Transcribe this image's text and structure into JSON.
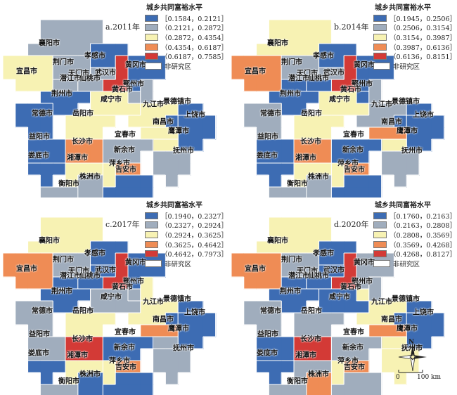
{
  "legend_title": "城乡共同富裕水平",
  "no_study": "非研究区",
  "colors": [
    "#3d6cb3",
    "#a0adbd",
    "#f7f2b3",
    "#ef8c55",
    "#d33a36"
  ],
  "panels": [
    {
      "title": "a.2011年",
      "ranges": [
        "［0.1584，0.2121］",
        "（0.2121，0.2872］",
        "（0.2872，0.4354］",
        "（0.4354，0.6187］",
        "（0.6187，0.7585］"
      ],
      "classes": {
        "xiangyang": 1,
        "jingmen": 1,
        "xiaogan": 0,
        "wuhan": 4,
        "huanggang": 0,
        "yichang": 2,
        "tianmen": 1,
        "qianjiang": 1,
        "xiantao": 1,
        "ezhou": 1,
        "jingzhou": 0,
        "huangshi": 1,
        "xianning": 2,
        "changde": 0,
        "yueyang": 2,
        "jiujiang": 2,
        "jingdezhen": 0,
        "shangrao": 0,
        "nanchang": 2,
        "yingtan": 2,
        "yiyang": 0,
        "changsha": 3,
        "yichun": 1,
        "xinyu": 3,
        "fuzhou": 1,
        "loudi": 0,
        "xiangtan": 2,
        "pingxiang": 2,
        "zhuzhou": 1,
        "hengyang": 1,
        "jian": 0
      }
    },
    {
      "title": "b.2014年",
      "ranges": [
        "［0.1945，0.2506］",
        "（0.2506，0.3154］",
        "（0.3154，0.3987］",
        "（0.3987，0.6136］",
        "（0.6136，0.8151］"
      ],
      "classes": {
        "xiangyang": 2,
        "jingmen": 1,
        "xiaogan": 0,
        "wuhan": 4,
        "huanggang": 0,
        "yichang": 3,
        "tianmen": 1,
        "qianjiang": 0,
        "xiantao": 0,
        "ezhou": 0,
        "jingzhou": 0,
        "huangshi": 1,
        "xianning": 2,
        "changde": 1,
        "yueyang": 2,
        "jiujiang": 1,
        "jingdezhen": 0,
        "shangrao": 0,
        "nanchang": 3,
        "yingtan": 2,
        "yiyang": 0,
        "changsha": 3,
        "yichun": 0,
        "xinyu": 3,
        "fuzhou": 1,
        "loudi": 0,
        "xiangtan": 2,
        "pingxiang": 2,
        "zhuzhou": 1,
        "hengyang": 1,
        "jian": 0
      }
    },
    {
      "title": "c.2017年",
      "ranges": [
        "［0.1940，0.2327］",
        "（0.2327，0.2924］",
        "（0.2924，0.3625］",
        "（0.3625，0.4642］",
        "（0.4642，0.7973］"
      ],
      "classes": {
        "xiangyang": 2,
        "jingmen": 1,
        "xiaogan": 0,
        "wuhan": 4,
        "huanggang": 0,
        "yichang": 3,
        "tianmen": 0,
        "qianjiang": 0,
        "xiantao": 0,
        "ezhou": 1,
        "jingzhou": 0,
        "huangshi": 2,
        "xianning": 1,
        "changde": 1,
        "yueyang": 2,
        "jiujiang": 2,
        "jingdezhen": 0,
        "shangrao": 0,
        "nanchang": 3,
        "yingtan": 1,
        "yiyang": 1,
        "changsha": 4,
        "yichun": 0,
        "xinyu": 3,
        "fuzhou": 1,
        "loudi": 0,
        "xiangtan": 2,
        "pingxiang": 2,
        "zhuzhou": 0,
        "hengyang": 1,
        "jian": 0
      }
    },
    {
      "title": "d.2020年",
      "ranges": [
        "［0.1760，0.2163］",
        "（0.2163，0.2808］",
        "（0.2808，0.3569］",
        "（0.3569，0.4268］",
        "（0.4268，0.8127］"
      ],
      "classes": {
        "xiangyang": 2,
        "jingmen": 1,
        "xiaogan": 0,
        "wuhan": 4,
        "huanggang": 1,
        "yichang": 3,
        "tianmen": 0,
        "qianjiang": 0,
        "xiantao": 0,
        "ezhou": 2,
        "jingzhou": 0,
        "huangshi": 1,
        "xianning": 0,
        "changde": 1,
        "yueyang": 1,
        "jiujiang": 2,
        "jingdezhen": 0,
        "shangrao": 0,
        "nanchang": 3,
        "yingtan": 2,
        "yiyang": 0,
        "changsha": 4,
        "yichun": 1,
        "xinyu": 3,
        "fuzhou": 2,
        "loudi": 0,
        "xiangtan": 1,
        "pingxiang": 2,
        "zhuzhou": 3,
        "hengyang": 1,
        "jian": 1
      }
    }
  ],
  "cities": {
    "xiangyang": "襄阳市",
    "jingmen": "荆门市",
    "xiaogan": "孝感市",
    "wuhan": "武汉市",
    "huanggang": "黄冈市",
    "yichang": "宜昌市",
    "tianmen": "天门市",
    "qianjiang": "潜江市",
    "xiantao": "仙桃市",
    "ezhou": "鄂州市",
    "jingzhou": "荆州市",
    "huangshi": "黄石市",
    "xianning": "咸宁市",
    "changde": "常德市",
    "yueyang": "岳阳市",
    "jiujiang": "九江市",
    "jingdezhen": "景德镇市",
    "shangrao": "上饶市",
    "nanchang": "南昌市",
    "yingtan": "鹰潭市",
    "yiyang": "益阳市",
    "changsha": "长沙市",
    "yichun": "宜春市",
    "xinyu": "新余市",
    "fuzhou": "抚州市",
    "loudi": "娄底市",
    "xiangtan": "湘潭市",
    "pingxiang": "萍乡市",
    "zhuzhou": "株洲市",
    "hengyang": "衡阳市",
    "jian": "吉安市"
  },
  "scale": {
    "zero": "0",
    "hundred": "100 km",
    "north": "N"
  }
}
